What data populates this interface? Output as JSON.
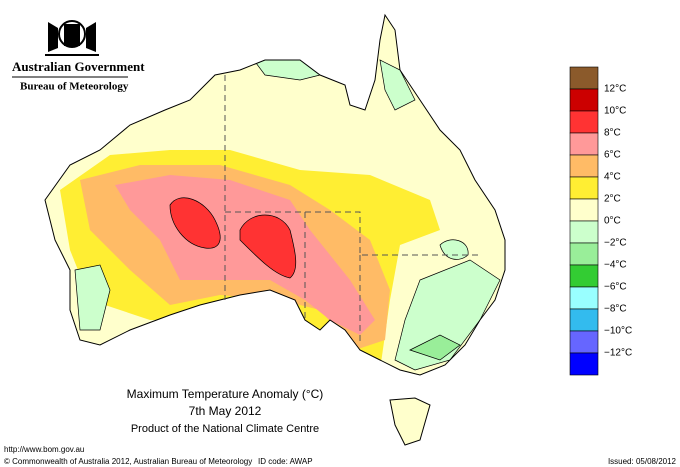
{
  "header": {
    "government": "Australian Government",
    "bureau": "Bureau of Meteorology"
  },
  "map": {
    "title": "Maximum Temperature Anomaly (°C)",
    "date": "7th May 2012",
    "product": "Product of the National Climate Centre"
  },
  "legend": {
    "colors": [
      "#8b5a2b",
      "#cc0000",
      "#ff3333",
      "#ff9999",
      "#ffbb66",
      "#ffee33",
      "#ffffcc",
      "#ccffcc",
      "#99ee99",
      "#33cc33",
      "#99ffff",
      "#33bbee",
      "#6666ff",
      "#0000ff"
    ],
    "labels": [
      "12°C",
      "10°C",
      "8°C",
      "6°C",
      "4°C",
      "2°C",
      "0°C",
      "−2°C",
      "−4°C",
      "−6°C",
      "−8°C",
      "−10°C",
      "−12°C"
    ]
  },
  "footer": {
    "url": "http://www.bom.gov.au",
    "copyright": "© Commonwealth of Australia 2012, Australian Bureau of Meteorology",
    "id_code": "ID code: AWAP",
    "issued": "Issued: 05/08/2012"
  }
}
